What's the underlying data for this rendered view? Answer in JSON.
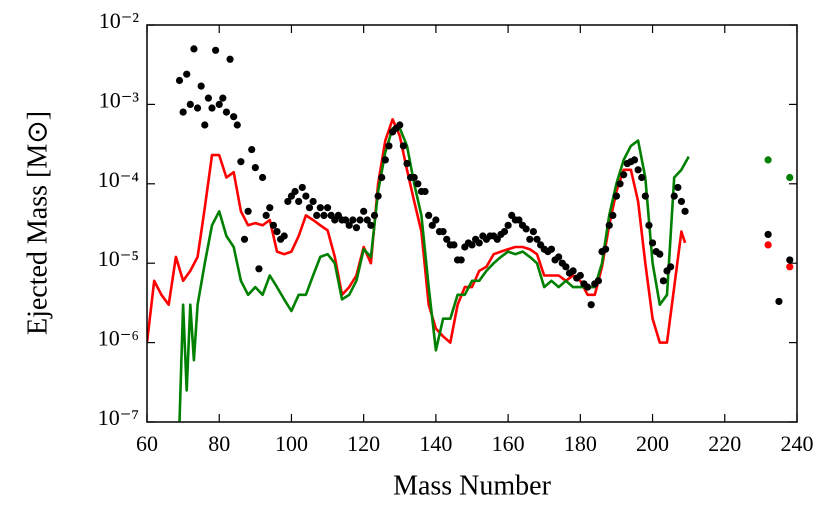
{
  "chart_data": {
    "type": "line",
    "xlabel": "Mass Number",
    "ylabel": "Ejected Mass [M⊙]",
    "xlim": [
      60,
      240
    ],
    "xticks": [
      60,
      80,
      100,
      120,
      140,
      160,
      180,
      200,
      220,
      240
    ],
    "ylim": [
      1e-07,
      0.01
    ],
    "ylog": true,
    "yticks": [
      {
        "value": 1e-07,
        "label": "10⁻⁷"
      },
      {
        "value": 1e-06,
        "label": "10⁻⁶"
      },
      {
        "value": 1e-05,
        "label": "10⁻⁵"
      },
      {
        "value": 0.0001,
        "label": "10⁻⁴"
      },
      {
        "value": 0.001,
        "label": "10⁻³"
      },
      {
        "value": 0.01,
        "label": "10⁻²"
      }
    ],
    "series": [
      {
        "style": "line",
        "color": "#ff0000",
        "x": [
          60,
          62,
          64,
          66,
          68,
          70,
          72,
          74,
          76,
          78,
          80,
          82,
          84,
          86,
          88,
          90,
          92,
          94,
          96,
          98,
          100,
          102,
          104,
          106,
          108,
          110,
          112,
          114,
          116,
          118,
          120,
          122,
          124,
          126,
          128,
          130,
          132,
          134,
          136,
          138,
          140,
          142,
          144,
          146,
          148,
          150,
          152,
          154,
          156,
          158,
          160,
          162,
          164,
          166,
          168,
          170,
          172,
          174,
          176,
          178,
          180,
          182,
          184,
          186,
          188,
          190,
          192,
          194,
          196,
          198,
          200,
          202,
          204,
          206,
          208,
          209
        ],
        "values": [
          1e-06,
          6e-06,
          4e-06,
          3e-06,
          1.2e-05,
          6e-06,
          8e-06,
          1.2e-05,
          5e-05,
          0.00023,
          0.00023,
          0.00012,
          0.00014,
          4.5e-05,
          3e-05,
          3.2e-05,
          3e-05,
          3.5e-05,
          1.4e-05,
          1.3e-05,
          1.4e-05,
          2.2e-05,
          4e-05,
          3.5e-05,
          3e-05,
          2.6e-05,
          1.2e-05,
          4e-06,
          5e-06,
          7e-06,
          1.6e-05,
          1e-05,
          0.0001,
          0.00035,
          0.00065,
          0.0004,
          0.00015,
          6e-05,
          2.5e-05,
          3e-06,
          1.5e-06,
          1.2e-06,
          1e-06,
          3e-06,
          5e-06,
          5e-06,
          8e-06,
          9e-06,
          1.3e-05,
          1.4e-05,
          1.5e-05,
          1.6e-05,
          1.6e-05,
          1.5e-05,
          1.3e-05,
          7e-06,
          7e-06,
          7e-06,
          6e-06,
          7e-06,
          6e-06,
          4e-06,
          4e-06,
          9e-06,
          3e-05,
          8e-05,
          0.00015,
          0.00015,
          6e-05,
          1e-05,
          2e-06,
          1e-06,
          1e-06,
          5e-06,
          2.5e-05,
          1.8e-05
        ]
      },
      {
        "style": "line",
        "color": "#008000",
        "x": [
          69,
          70,
          71,
          72,
          73,
          74,
          76,
          78,
          80,
          82,
          84,
          86,
          88,
          90,
          92,
          94,
          96,
          98,
          100,
          102,
          104,
          106,
          108,
          110,
          112,
          114,
          116,
          118,
          120,
          122,
          124,
          126,
          128,
          130,
          132,
          134,
          136,
          138,
          140,
          142,
          144,
          146,
          148,
          150,
          152,
          154,
          156,
          158,
          160,
          162,
          164,
          166,
          168,
          170,
          172,
          174,
          176,
          178,
          180,
          182,
          184,
          186,
          188,
          190,
          192,
          194,
          196,
          198,
          200,
          202,
          204,
          206,
          208,
          210
        ],
        "values": [
          1e-07,
          3e-06,
          2.5e-07,
          3e-06,
          6e-07,
          3e-06,
          1e-05,
          3e-05,
          4.5e-05,
          2.2e-05,
          1.6e-05,
          6e-06,
          4e-06,
          5e-06,
          4e-06,
          7e-06,
          5e-06,
          3.5e-06,
          2.5e-06,
          4e-06,
          4e-06,
          7e-06,
          1.2e-05,
          1.3e-05,
          1e-05,
          3.5e-06,
          4e-06,
          6e-06,
          1.5e-05,
          1.2e-05,
          8e-05,
          0.00025,
          0.0005,
          0.0005,
          0.0003,
          0.0001,
          4e-05,
          5e-06,
          8e-07,
          2e-06,
          2e-06,
          4e-06,
          4e-06,
          6e-06,
          6e-06,
          8e-06,
          1e-05,
          1.2e-05,
          1.4e-05,
          1.3e-05,
          1.4e-05,
          1.2e-05,
          1e-05,
          5e-06,
          6e-06,
          5e-06,
          6e-06,
          5e-06,
          5e-06,
          5e-06,
          5e-06,
          1e-05,
          4e-05,
          0.0001,
          0.0002,
          0.0003,
          0.00035,
          0.00012,
          1e-05,
          3e-06,
          4e-06,
          0.00012,
          0.00015,
          0.00022
        ]
      },
      {
        "style": "markers",
        "color": "#000000",
        "x": [
          69,
          70,
          71,
          72,
          73,
          74,
          75,
          76,
          77,
          78,
          79,
          80,
          81,
          82,
          83,
          84,
          85,
          86,
          87,
          88,
          89,
          90,
          91,
          92,
          93,
          94,
          95,
          96,
          97,
          98,
          99,
          100,
          101,
          102,
          103,
          104,
          105,
          106,
          107,
          108,
          109,
          110,
          111,
          112,
          113,
          114,
          115,
          116,
          117,
          118,
          119,
          120,
          121,
          122,
          123,
          124,
          125,
          126,
          127,
          128,
          129,
          130,
          131,
          132,
          133,
          134,
          135,
          136,
          137,
          138,
          139,
          140,
          141,
          142,
          143,
          144,
          145,
          146,
          147,
          148,
          149,
          150,
          151,
          152,
          153,
          154,
          155,
          156,
          157,
          158,
          159,
          160,
          161,
          162,
          163,
          164,
          165,
          166,
          167,
          168,
          169,
          170,
          171,
          172,
          173,
          174,
          175,
          176,
          177,
          178,
          179,
          180,
          181,
          182,
          183,
          184,
          185,
          186,
          187,
          188,
          189,
          190,
          191,
          192,
          193,
          194,
          195,
          196,
          197,
          198,
          199,
          200,
          201,
          202,
          203,
          204,
          205,
          206,
          207,
          208,
          209,
          232,
          235,
          238
        ],
        "values": [
          0.002,
          0.0008,
          0.0024,
          0.001,
          0.005,
          0.0009,
          0.0017,
          0.00055,
          0.0012,
          0.0009,
          0.0048,
          0.001,
          0.0012,
          0.0008,
          0.0037,
          0.0007,
          0.00055,
          0.00019,
          2e-05,
          4.5e-05,
          0.00027,
          0.00016,
          8.5e-06,
          0.00012,
          4e-05,
          5e-05,
          3e-05,
          2.5e-05,
          2e-05,
          2.2e-05,
          6e-05,
          7e-05,
          8e-05,
          6e-05,
          9e-05,
          7e-05,
          5e-05,
          6e-05,
          4e-05,
          5e-05,
          4e-05,
          5e-05,
          4e-05,
          3.5e-05,
          4e-05,
          3.5e-05,
          3.5e-05,
          3e-05,
          3.5e-05,
          2.8e-05,
          3.5e-05,
          4.5e-05,
          3.5e-05,
          3e-05,
          4e-05,
          7e-05,
          0.00012,
          0.0002,
          0.0003,
          0.00045,
          0.0005,
          0.00055,
          0.0003,
          0.00018,
          0.00012,
          0.00012,
          0.0001,
          8e-05,
          8e-05,
          4e-05,
          3e-05,
          3.5e-05,
          2.5e-05,
          2.5e-05,
          2e-05,
          1.7e-05,
          1.7e-05,
          1.1e-05,
          1.1e-05,
          1.6e-05,
          1.8e-05,
          1.7e-05,
          2e-05,
          1.8e-05,
          2.2e-05,
          2e-05,
          2.2e-05,
          2.2e-05,
          2e-05,
          2.3e-05,
          2.5e-05,
          3e-05,
          4e-05,
          3.5e-05,
          3.5e-05,
          3e-05,
          2.7e-05,
          2e-05,
          2.5e-05,
          2e-05,
          1.7e-05,
          1.5e-05,
          1.4e-05,
          1.5e-05,
          1.1e-05,
          1.2e-05,
          1e-05,
          9e-06,
          7.5e-06,
          8e-06,
          6.5e-06,
          7e-06,
          5.5e-06,
          5e-06,
          3e-06,
          5.5e-06,
          6e-06,
          1.4e-05,
          1.5e-05,
          3e-05,
          4e-05,
          7e-05,
          0.0001,
          0.00013,
          0.00018,
          0.00019,
          0.0002,
          0.00015,
          0.00012,
          7e-05,
          3e-05,
          1.8e-05,
          1.4e-05,
          1.3e-05,
          6e-06,
          8e-06,
          9e-06,
          7e-05,
          9e-05,
          6e-05,
          4.5e-05,
          2.3e-05,
          3.3e-06,
          1.1e-05
        ]
      },
      {
        "style": "markers",
        "color": "#ff0000",
        "x": [
          232,
          238
        ],
        "values": [
          1.7e-05,
          9e-06
        ]
      },
      {
        "style": "markers",
        "color": "#008000",
        "x": [
          232,
          238
        ],
        "values": [
          0.0002,
          0.00012
        ]
      }
    ]
  }
}
